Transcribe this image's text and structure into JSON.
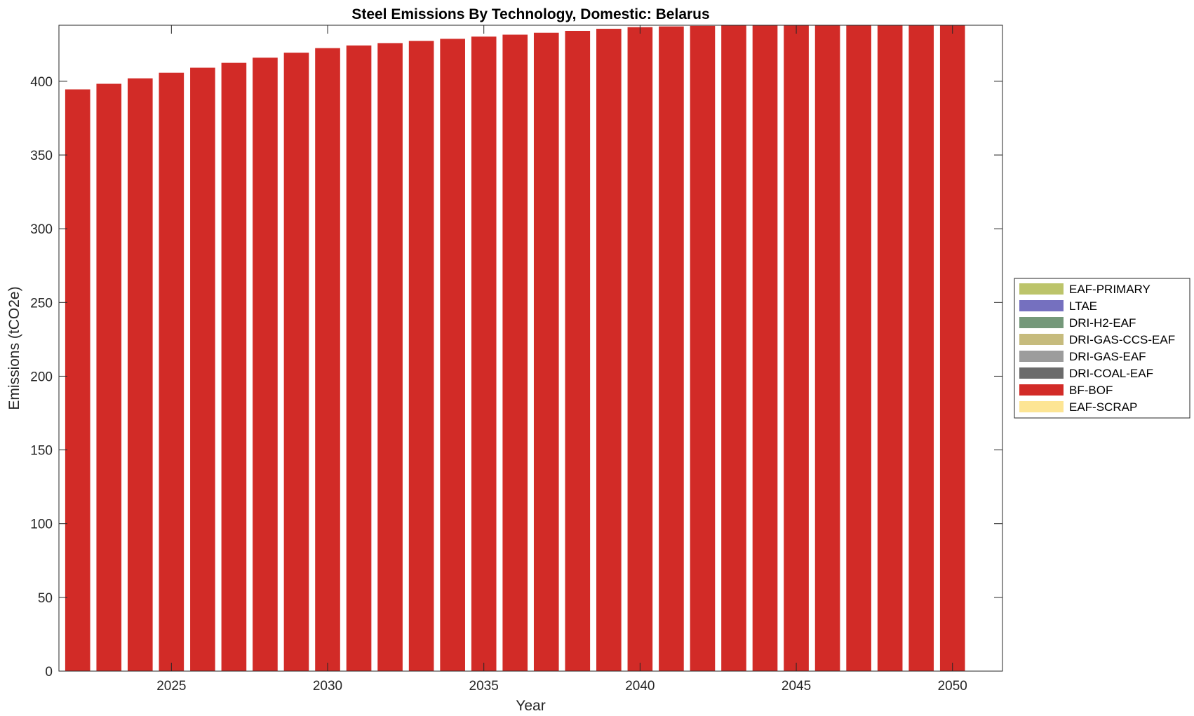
{
  "chart_data": {
    "type": "bar",
    "stacked": true,
    "title": "Steel Emissions By Technology, Domestic: Belarus",
    "xlabel": "Year",
    "ylabel": "Emissions (tCO2e)",
    "xlim": [
      2021.4,
      2051.6
    ],
    "ylim": [
      0,
      438
    ],
    "xticks": [
      2025,
      2030,
      2035,
      2040,
      2045,
      2050
    ],
    "yticks": [
      0,
      50,
      100,
      150,
      200,
      250,
      300,
      350,
      400
    ],
    "grid": false,
    "legend_position": "right",
    "x": [
      2022,
      2023,
      2024,
      2025,
      2026,
      2027,
      2028,
      2029,
      2030,
      2031,
      2032,
      2033,
      2034,
      2035,
      2036,
      2037,
      2038,
      2039,
      2040,
      2041,
      2042,
      2043,
      2044,
      2045,
      2046,
      2047,
      2048,
      2049,
      2050
    ],
    "series": [
      {
        "name": "EAF-PRIMARY",
        "color": "#bcc46a",
        "values": [
          0,
          0,
          0,
          0,
          0,
          0,
          0,
          0,
          0,
          0,
          0,
          0,
          0,
          0,
          0,
          0,
          0,
          0,
          0,
          0,
          0,
          0,
          0,
          0,
          0,
          0,
          0,
          0,
          0
        ]
      },
      {
        "name": "LTAE",
        "color": "#7570bf",
        "values": [
          0,
          0,
          0,
          0,
          0,
          0,
          0,
          0,
          0,
          0,
          0,
          0,
          0,
          0,
          0,
          0,
          0,
          0,
          0,
          0,
          0,
          0,
          0,
          0,
          0,
          0,
          0,
          0,
          0
        ]
      },
      {
        "name": "DRI-H2-EAF",
        "color": "#74987a",
        "values": [
          0,
          0,
          0,
          0,
          0,
          0,
          0,
          0,
          0,
          0,
          0,
          0,
          0,
          0,
          0,
          0,
          0,
          0,
          0,
          0,
          0,
          0,
          0,
          0,
          0,
          0,
          0,
          0,
          0
        ]
      },
      {
        "name": "DRI-GAS-CCS-EAF",
        "color": "#c6bb7d",
        "values": [
          0,
          0,
          0,
          0,
          0,
          0,
          0,
          0,
          0,
          0,
          0,
          0,
          0,
          0,
          0,
          0,
          0,
          0,
          0,
          0,
          0,
          0,
          0,
          0,
          0,
          0,
          0,
          0,
          0
        ]
      },
      {
        "name": "DRI-GAS-EAF",
        "color": "#9c9c9c",
        "values": [
          0,
          0,
          0,
          0,
          0,
          0,
          0,
          0,
          0,
          0,
          0,
          0,
          0,
          0,
          0,
          0,
          0,
          0,
          0,
          0,
          0,
          0,
          0,
          0,
          0,
          0,
          0,
          0,
          0
        ]
      },
      {
        "name": "DRI-COAL-EAF",
        "color": "#6b6b6b",
        "values": [
          0,
          0,
          0,
          0,
          0,
          0,
          0,
          0,
          0,
          0,
          0,
          0,
          0,
          0,
          0,
          0,
          0,
          0,
          0,
          0,
          0,
          0,
          0,
          0,
          0,
          0,
          0,
          0,
          0
        ]
      },
      {
        "name": "BF-BOF",
        "color": "#d22b27",
        "values": [
          394.5,
          398.3,
          402.0,
          405.8,
          409.2,
          412.5,
          416.0,
          419.4,
          422.5,
          424.3,
          425.9,
          427.4,
          428.8,
          430.3,
          431.6,
          432.9,
          434.2,
          435.6,
          436.7,
          437.2,
          437.6,
          438.0,
          438.4,
          438.7,
          439.0,
          439.3,
          439.5,
          439.7,
          440.0
        ]
      },
      {
        "name": "EAF-SCRAP",
        "color": "#fde594",
        "values": [
          0,
          0,
          0,
          0,
          0,
          0,
          0,
          0,
          0,
          0,
          0,
          0,
          0,
          0,
          0,
          0,
          0,
          0,
          0,
          0,
          0,
          0,
          0,
          0,
          0,
          0,
          0,
          0,
          0
        ]
      }
    ]
  }
}
